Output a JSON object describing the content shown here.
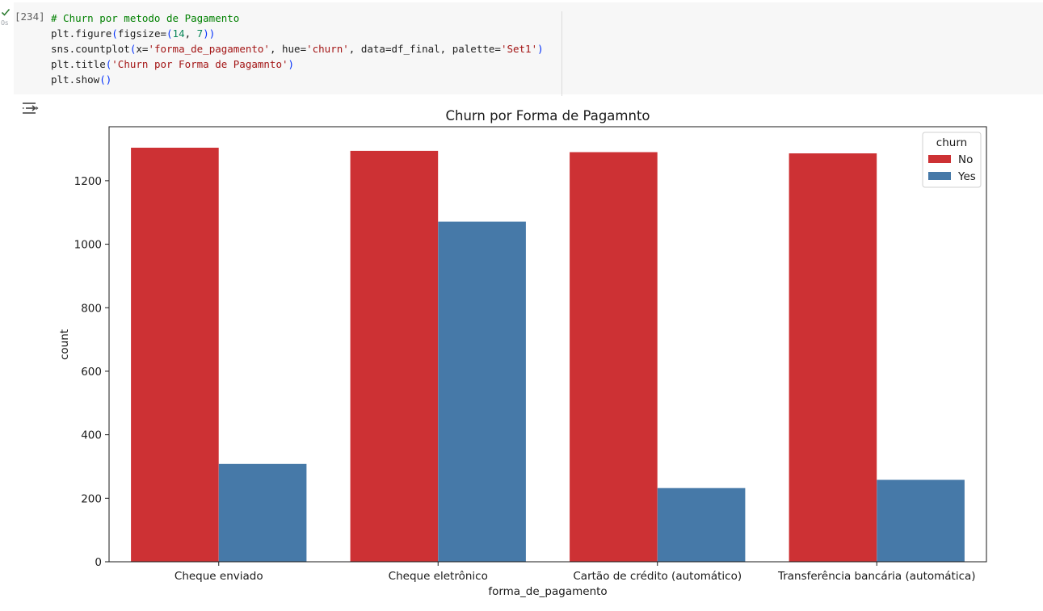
{
  "cell": {
    "execution_count": "[234]",
    "run_time": "0s",
    "code_lines": [
      [
        {
          "t": "# Churn por metodo de Pagamento",
          "c": "comment"
        }
      ],
      [
        {
          "t": "plt.figure",
          "c": ""
        },
        {
          "t": "(",
          "c": "paren"
        },
        {
          "t": "figsize=",
          "c": ""
        },
        {
          "t": "(",
          "c": "paren"
        },
        {
          "t": "14",
          "c": "number"
        },
        {
          "t": ", ",
          "c": ""
        },
        {
          "t": "7",
          "c": "number"
        },
        {
          "t": "))",
          "c": "paren"
        }
      ],
      [
        {
          "t": "sns.countplot",
          "c": ""
        },
        {
          "t": "(",
          "c": "paren"
        },
        {
          "t": "x=",
          "c": ""
        },
        {
          "t": "'forma_de_pagamento'",
          "c": "string"
        },
        {
          "t": ", hue=",
          "c": ""
        },
        {
          "t": "'churn'",
          "c": "string"
        },
        {
          "t": ", data=df_final, palette=",
          "c": ""
        },
        {
          "t": "'Set1'",
          "c": "string"
        },
        {
          "t": ")",
          "c": "paren"
        }
      ],
      [
        {
          "t": "plt.title",
          "c": ""
        },
        {
          "t": "(",
          "c": "paren"
        },
        {
          "t": "'Churn por Forma de Pagamnto'",
          "c": "string"
        },
        {
          "t": ")",
          "c": "paren"
        }
      ],
      [
        {
          "t": "plt.show",
          "c": ""
        },
        {
          "t": "()",
          "c": "paren"
        }
      ]
    ]
  },
  "output_icon": "output-toggle-icon",
  "status_icon": "check-icon",
  "chart_data": {
    "type": "bar",
    "title": "Churn por Forma de Pagamnto",
    "xlabel": "forma_de_pagamento",
    "ylabel": "count",
    "categories": [
      "Cheque enviado",
      "Cheque eletrônico",
      "Cartão de crédito (automático)",
      "Transferência bancária (automática)"
    ],
    "series": [
      {
        "name": "No",
        "color": "#cd3134",
        "values": [
          1304,
          1294,
          1290,
          1286
        ]
      },
      {
        "name": "Yes",
        "color": "#4679a8",
        "values": [
          308,
          1071,
          232,
          258
        ]
      }
    ],
    "ylim": [
      0,
      1370
    ],
    "yticks": [
      0,
      200,
      400,
      600,
      800,
      1000,
      1200
    ],
    "legend": {
      "title": "churn",
      "position": "top-right"
    },
    "grid": false
  }
}
